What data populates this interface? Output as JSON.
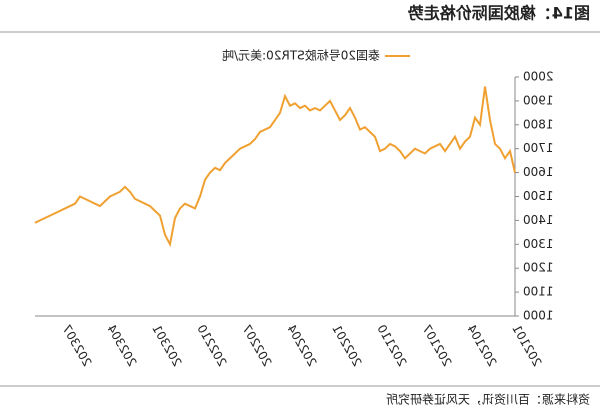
{
  "chart_data": {
    "type": "line",
    "title": "图14：橡胶国际价格走势",
    "source": "资料来源：百川资讯，天风证券研究所",
    "categories": [
      "202101",
      null,
      null,
      null,
      null,
      null,
      null,
      null,
      null,
      "202104",
      null,
      null,
      null,
      null,
      null,
      null,
      null,
      null,
      "202107",
      null,
      null,
      null,
      null,
      null,
      null,
      null,
      null,
      "202110",
      null,
      null,
      null,
      null,
      null,
      null,
      null,
      null,
      "202201",
      null,
      null,
      null,
      null,
      null,
      null,
      null,
      null,
      "202204",
      null,
      null,
      null,
      null,
      null,
      null,
      null,
      null,
      "202207",
      null,
      null,
      null,
      null,
      null,
      null,
      null,
      null,
      "202210",
      null,
      null,
      null,
      null,
      null,
      null,
      null,
      null,
      "202301",
      null,
      null,
      null,
      null,
      null,
      null,
      null,
      null,
      "202304",
      null,
      null,
      null,
      null,
      null,
      null,
      null,
      null,
      "202307",
      null,
      null,
      null,
      null,
      null,
      null
    ],
    "series": [
      {
        "name": "泰国20号标胶STR20:美元/吨",
        "color": "#f0a030",
        "values": [
          1600,
          1690,
          1660,
          1700,
          1720,
          1820,
          1960,
          1800,
          1830,
          1750,
          1730,
          1700,
          1750,
          1720,
          1690,
          1720,
          1710,
          1700,
          1680,
          1690,
          1700,
          1680,
          1660,
          1690,
          1710,
          1720,
          1700,
          1690,
          1750,
          1770,
          1790,
          1780,
          1830,
          1870,
          1840,
          1820,
          1860,
          1900,
          1880,
          1860,
          1870,
          1860,
          1880,
          1870,
          1890,
          1880,
          1920,
          1850,
          1820,
          1790,
          1780,
          1770,
          1740,
          1720,
          1710,
          1700,
          1680,
          1660,
          1640,
          1610,
          1620,
          1600,
          1570,
          1500,
          1450,
          1460,
          1470,
          1450,
          1410,
          1300,
          1340,
          1420,
          1440,
          1460,
          1470,
          1480,
          1490,
          1520,
          1540,
          1520,
          1510,
          1500,
          1480,
          1460,
          1470,
          1480,
          1490,
          1500,
          1470,
          1460,
          1450,
          1440,
          1430,
          1420,
          1410,
          1400,
          1390
        ]
      }
    ],
    "ylim": [
      1000,
      2000
    ],
    "yticks": [
      1000,
      1100,
      1200,
      1300,
      1400,
      1500,
      1600,
      1700,
      1800,
      1900,
      2000
    ]
  }
}
